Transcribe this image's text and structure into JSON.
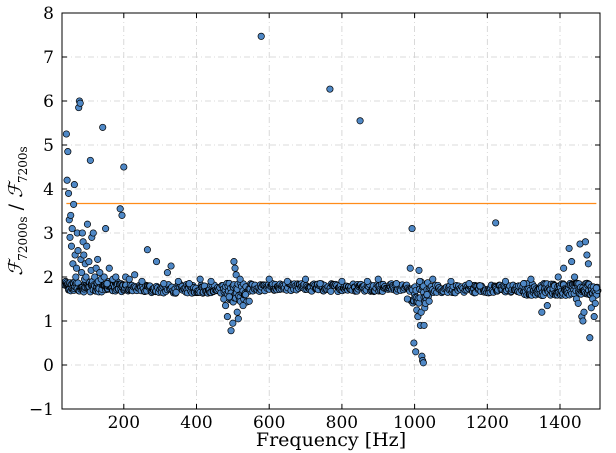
{
  "chart_data": {
    "type": "scatter",
    "xlabel": "Frequency [Hz]",
    "ylabel_parts": {
      "f1": "ℱ",
      "sub1": "72000s",
      "sep": " / ",
      "f2": "ℱ",
      "sub2": "7200s"
    },
    "xlim": [
      30,
      1510
    ],
    "ylim": [
      -1,
      8
    ],
    "xticks": [
      {
        "value": 200,
        "label": "200"
      },
      {
        "value": 400,
        "label": "400"
      },
      {
        "value": 600,
        "label": "600"
      },
      {
        "value": 800,
        "label": "800"
      },
      {
        "value": 1000,
        "label": "1000"
      },
      {
        "value": 1200,
        "label": "1200"
      },
      {
        "value": 1400,
        "label": "1400"
      }
    ],
    "yticks": [
      {
        "value": -1,
        "label": "−1"
      },
      {
        "value": 0,
        "label": "0"
      },
      {
        "value": 1,
        "label": "1"
      },
      {
        "value": 2,
        "label": "2"
      },
      {
        "value": 3,
        "label": "3"
      },
      {
        "value": 4,
        "label": "4"
      },
      {
        "value": 5,
        "label": "5"
      },
      {
        "value": 6,
        "label": "6"
      },
      {
        "value": 7,
        "label": "7"
      },
      {
        "value": 8,
        "label": "8"
      }
    ],
    "grid": true,
    "hline": {
      "y": 3.67,
      "color": "#ff8c1a"
    },
    "marker_color": "#4f88c6",
    "marker_edge": "#000000",
    "points": [
      [
        42,
        5.25
      ],
      [
        44,
        4.2
      ],
      [
        46,
        4.85
      ],
      [
        48,
        3.9
      ],
      [
        50,
        3.3
      ],
      [
        52,
        2.9
      ],
      [
        54,
        3.4
      ],
      [
        56,
        2.7
      ],
      [
        58,
        3.1
      ],
      [
        60,
        2.3
      ],
      [
        62,
        3.65
      ],
      [
        64,
        4.1
      ],
      [
        66,
        2.5
      ],
      [
        68,
        2.0
      ],
      [
        70,
        2.2
      ],
      [
        72,
        3.0
      ],
      [
        74,
        2.6
      ],
      [
        76,
        5.85
      ],
      [
        78,
        6.0
      ],
      [
        80,
        5.95
      ],
      [
        82,
        2.4
      ],
      [
        84,
        2.1
      ],
      [
        86,
        3.0
      ],
      [
        88,
        2.8
      ],
      [
        90,
        2.5
      ],
      [
        92,
        1.95
      ],
      [
        94,
        2.3
      ],
      [
        96,
        2.0
      ],
      [
        98,
        2.7
      ],
      [
        100,
        3.2
      ],
      [
        104,
        2.35
      ],
      [
        108,
        4.65
      ],
      [
        110,
        2.15
      ],
      [
        112,
        2.9
      ],
      [
        116,
        3.0
      ],
      [
        120,
        2.0
      ],
      [
        124,
        2.2
      ],
      [
        128,
        2.4
      ],
      [
        130,
        1.9
      ],
      [
        134,
        2.1
      ],
      [
        138,
        1.95
      ],
      [
        142,
        5.4
      ],
      [
        146,
        2.0
      ],
      [
        150,
        3.1
      ],
      [
        154,
        1.85
      ],
      [
        160,
        2.2
      ],
      [
        170,
        1.95
      ],
      [
        178,
        2.0
      ],
      [
        190,
        3.55
      ],
      [
        195,
        3.4
      ],
      [
        200,
        4.5
      ],
      [
        205,
        2.0
      ],
      [
        215,
        1.95
      ],
      [
        230,
        2.05
      ],
      [
        250,
        1.9
      ],
      [
        265,
        2.62
      ],
      [
        290,
        2.35
      ],
      [
        310,
        1.85
      ],
      [
        320,
        2.1
      ],
      [
        330,
        2.25
      ],
      [
        350,
        1.9
      ],
      [
        380,
        1.85
      ],
      [
        410,
        1.95
      ],
      [
        440,
        1.9
      ],
      [
        475,
        1.5
      ],
      [
        480,
        1.35
      ],
      [
        485,
        1.1
      ],
      [
        490,
        1.55
      ],
      [
        495,
        0.78
      ],
      [
        500,
        0.95
      ],
      [
        503,
        2.35
      ],
      [
        506,
        2.2
      ],
      [
        509,
        2.05
      ],
      [
        512,
        1.2
      ],
      [
        515,
        1.05
      ],
      [
        520,
        1.95
      ],
      [
        528,
        1.35
      ],
      [
        535,
        1.6
      ],
      [
        545,
        1.45
      ],
      [
        578,
        7.47
      ],
      [
        600,
        1.95
      ],
      [
        650,
        1.9
      ],
      [
        700,
        1.95
      ],
      [
        740,
        1.85
      ],
      [
        767,
        6.27
      ],
      [
        800,
        1.9
      ],
      [
        850,
        5.55
      ],
      [
        870,
        1.9
      ],
      [
        900,
        1.95
      ],
      [
        950,
        1.85
      ],
      [
        980,
        1.5
      ],
      [
        988,
        2.2
      ],
      [
        993,
        3.1
      ],
      [
        998,
        0.5
      ],
      [
        1003,
        0.3
      ],
      [
        1006,
        1.25
      ],
      [
        1009,
        1.1
      ],
      [
        1012,
        2.15
      ],
      [
        1014,
        1.9
      ],
      [
        1016,
        0.9
      ],
      [
        1018,
        1.2
      ],
      [
        1020,
        0.2
      ],
      [
        1022,
        0.1
      ],
      [
        1024,
        0.05
      ],
      [
        1026,
        0.9
      ],
      [
        1028,
        1.3
      ],
      [
        1030,
        1.4
      ],
      [
        1034,
        1.6
      ],
      [
        1040,
        1.45
      ],
      [
        1050,
        1.95
      ],
      [
        1100,
        1.9
      ],
      [
        1150,
        1.85
      ],
      [
        1180,
        1.8
      ],
      [
        1223,
        3.23
      ],
      [
        1250,
        1.9
      ],
      [
        1300,
        1.85
      ],
      [
        1320,
        1.95
      ],
      [
        1350,
        1.2
      ],
      [
        1365,
        1.35
      ],
      [
        1395,
        2.0
      ],
      [
        1410,
        2.2
      ],
      [
        1425,
        2.65
      ],
      [
        1432,
        2.35
      ],
      [
        1440,
        2.0
      ],
      [
        1445,
        1.5
      ],
      [
        1450,
        1.4
      ],
      [
        1455,
        2.75
      ],
      [
        1460,
        1.1
      ],
      [
        1463,
        1.0
      ],
      [
        1466,
        1.2
      ],
      [
        1470,
        2.8
      ],
      [
        1474,
        2.5
      ],
      [
        1478,
        2.3
      ],
      [
        1482,
        0.62
      ],
      [
        1486,
        1.3
      ],
      [
        1490,
        1.5
      ],
      [
        1494,
        1.1
      ],
      [
        1497,
        1.4
      ],
      [
        1500,
        1.75
      ]
    ],
    "bands": [
      {
        "x_start": 38,
        "x_end": 200,
        "step": 2,
        "y_center": 1.78,
        "spread": 0.12
      },
      {
        "x_start": 200,
        "x_end": 480,
        "step": 3,
        "y_center": 1.73,
        "spread": 0.1
      },
      {
        "x_start": 480,
        "x_end": 540,
        "step": 2,
        "y_center": 1.65,
        "spread": 0.22
      },
      {
        "x_start": 540,
        "x_end": 990,
        "step": 3,
        "y_center": 1.76,
        "spread": 0.09
      },
      {
        "x_start": 990,
        "x_end": 1040,
        "step": 2,
        "y_center": 1.65,
        "spread": 0.25
      },
      {
        "x_start": 1040,
        "x_end": 1300,
        "step": 3,
        "y_center": 1.73,
        "spread": 0.09
      },
      {
        "x_start": 1300,
        "x_end": 1505,
        "step": 2,
        "y_center": 1.72,
        "spread": 0.14
      }
    ]
  }
}
